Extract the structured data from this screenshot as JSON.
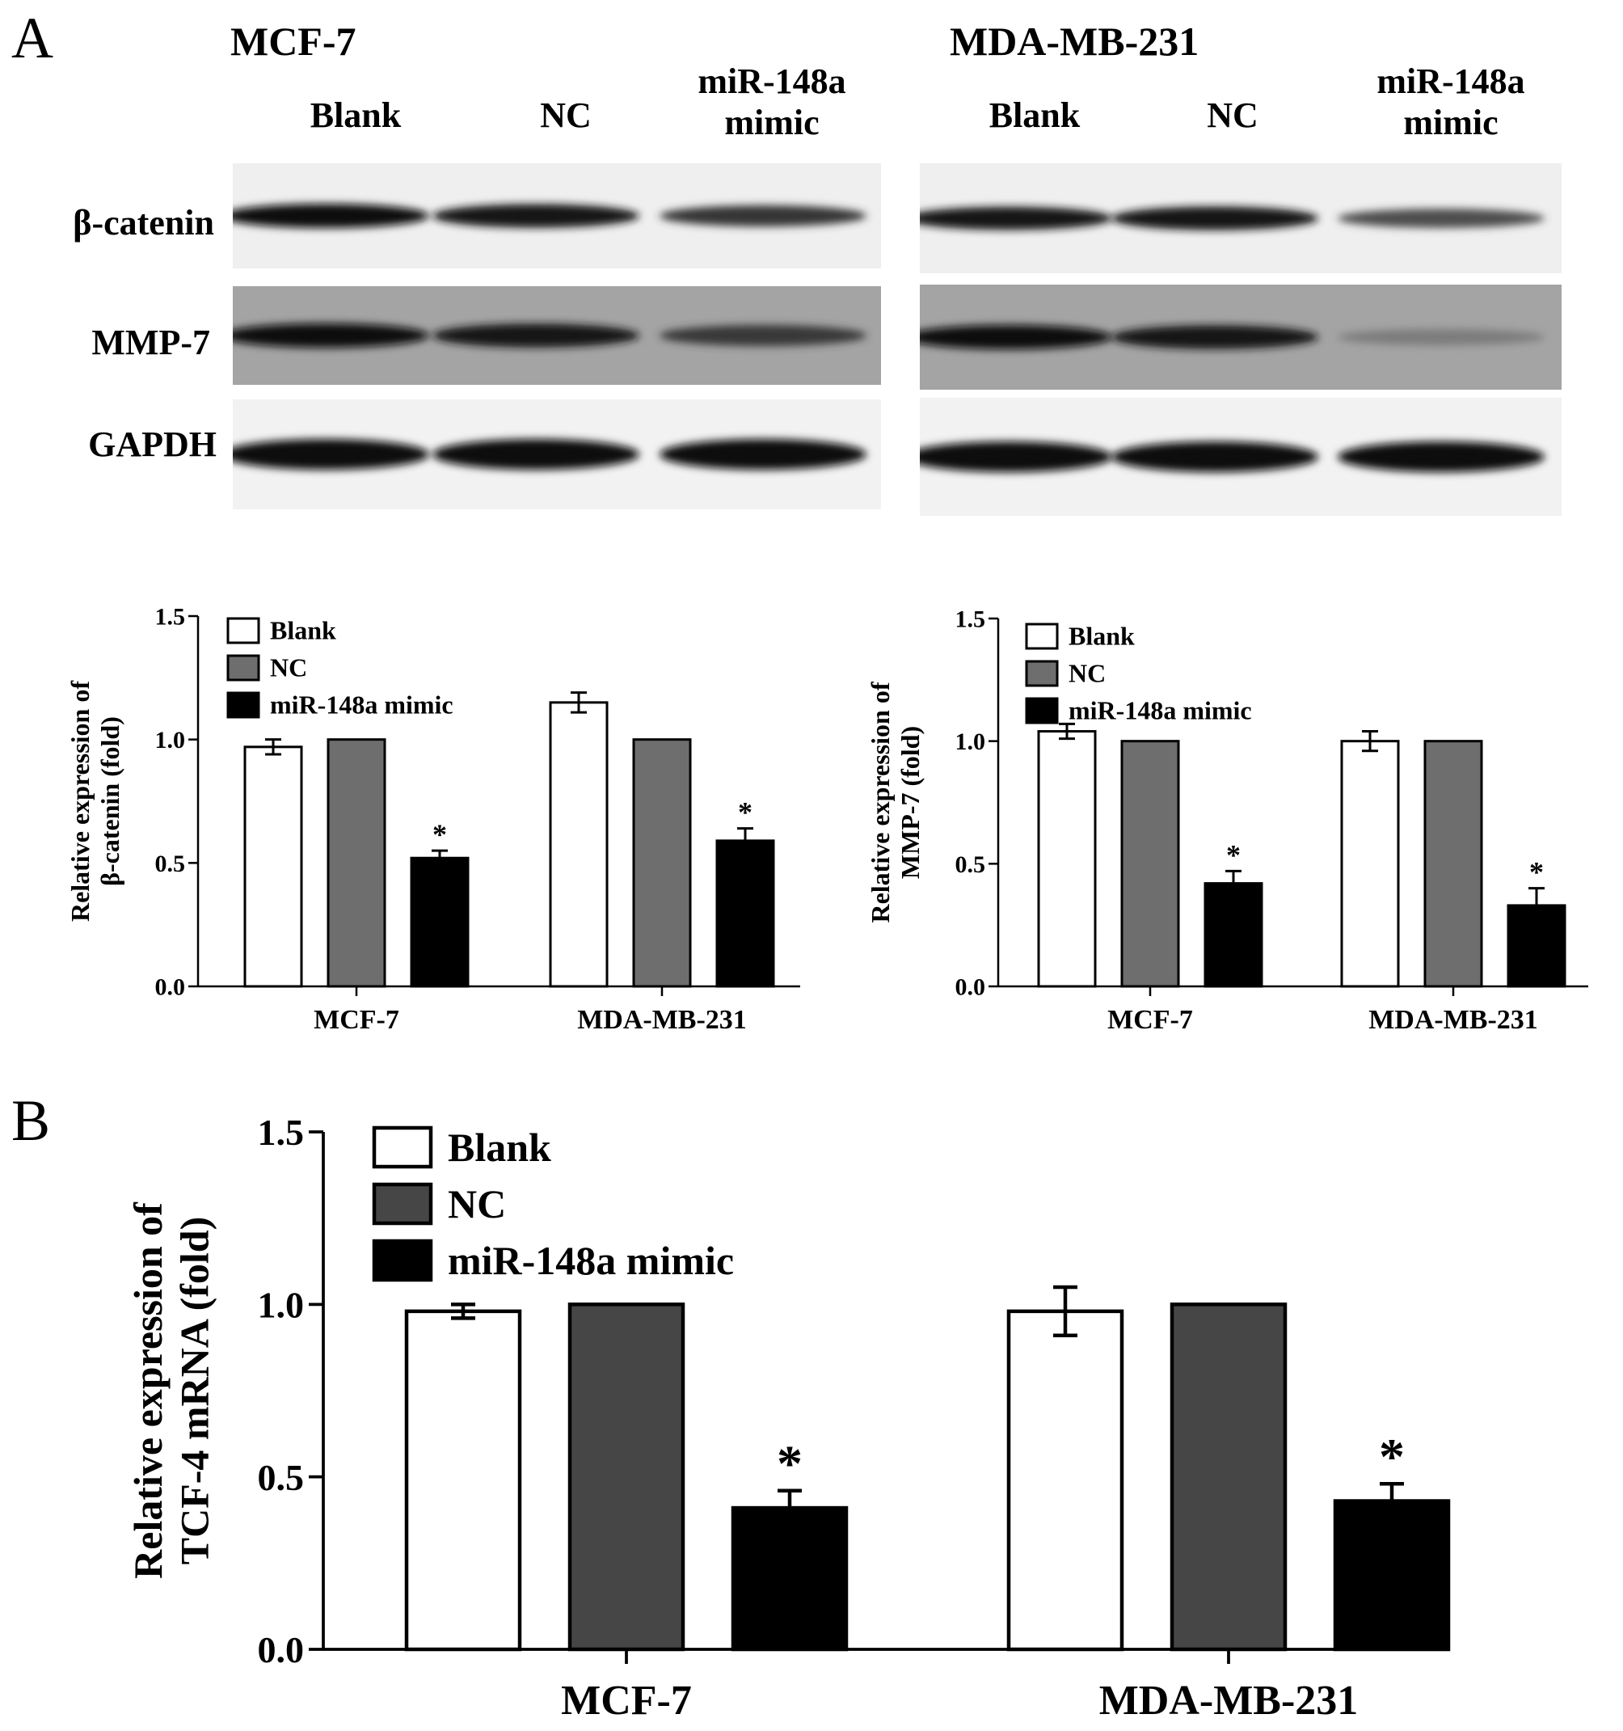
{
  "panels": {
    "a": "A",
    "b": "B"
  },
  "western_blot": {
    "cell_lines": [
      "MCF-7",
      "MDA-MB-231"
    ],
    "lanes": [
      {
        "line1": "Blank",
        "line2": ""
      },
      {
        "line1": "NC",
        "line2": ""
      },
      {
        "line1": "miR-148a",
        "line2": "mimic"
      }
    ],
    "proteins": [
      "β-catenin",
      "MMP-7",
      "GAPDH"
    ],
    "band_intensity": {
      "MCF-7": {
        "β-catenin": [
          1.0,
          0.95,
          0.72
        ],
        "MMP-7": [
          1.0,
          0.95,
          0.7
        ],
        "GAPDH": [
          1.0,
          1.0,
          1.0
        ]
      },
      "MDA-MB-231": {
        "β-catenin": [
          0.9,
          0.95,
          0.55
        ],
        "MMP-7": [
          1.0,
          0.95,
          0.25
        ],
        "GAPDH": [
          1.0,
          1.0,
          1.0
        ]
      }
    }
  },
  "colors": {
    "blank": "#ffffff",
    "nc": "#6e6e6e",
    "nc_b": "#464646",
    "mimic": "#000000"
  },
  "chart_data": [
    {
      "type": "bar",
      "title": "",
      "xlabel": "",
      "ylabel": "Relative expression of β-catenin (fold)",
      "categories": [
        "MCF-7",
        "MDA-MB-231"
      ],
      "series": [
        {
          "name": "Blank",
          "values": [
            0.97,
            1.15
          ],
          "errors": [
            0.03,
            0.04
          ]
        },
        {
          "name": "NC",
          "values": [
            1.0,
            1.0
          ],
          "errors": [
            0,
            0
          ]
        },
        {
          "name": "miR-148a mimic",
          "values": [
            0.52,
            0.59
          ],
          "errors": [
            0.03,
            0.05
          ]
        }
      ],
      "significance": [
        "*",
        "*"
      ],
      "ylim": [
        0,
        1.5
      ],
      "yticks": [
        "0.0",
        "0.5",
        "1.0",
        "1.5"
      ],
      "legend": "top-left",
      "grid": false
    },
    {
      "type": "bar",
      "title": "",
      "xlabel": "",
      "ylabel": "Relative expression of MMP-7 (fold)",
      "categories": [
        "MCF-7",
        "MDA-MB-231"
      ],
      "series": [
        {
          "name": "Blank",
          "values": [
            1.04,
            1.0
          ],
          "errors": [
            0.03,
            0.04
          ]
        },
        {
          "name": "NC",
          "values": [
            1.0,
            1.0
          ],
          "errors": [
            0,
            0
          ]
        },
        {
          "name": "miR-148a mimic",
          "values": [
            0.42,
            0.33
          ],
          "errors": [
            0.05,
            0.07
          ]
        }
      ],
      "significance": [
        "*",
        "*"
      ],
      "ylim": [
        0,
        1.5
      ],
      "yticks": [
        "0.0",
        "0.5",
        "1.0",
        "1.5"
      ],
      "legend": "top-left",
      "grid": false
    },
    {
      "type": "bar",
      "title": "",
      "xlabel": "",
      "ylabel": "Relative expression of TCF-4 mRNA (fold)",
      "categories": [
        "MCF-7",
        "MDA-MB-231"
      ],
      "series": [
        {
          "name": "Blank",
          "values": [
            0.98,
            0.98
          ],
          "errors": [
            0.02,
            0.07
          ]
        },
        {
          "name": "NC",
          "values": [
            1.0,
            1.0
          ],
          "errors": [
            0,
            0
          ]
        },
        {
          "name": "miR-148a mimic",
          "values": [
            0.41,
            0.43
          ],
          "errors": [
            0.05,
            0.05
          ]
        }
      ],
      "significance": [
        "*",
        "*"
      ],
      "ylim": [
        0,
        1.5
      ],
      "yticks": [
        "0.0",
        "0.5",
        "1.0",
        "1.5"
      ],
      "legend": "top-left",
      "grid": false
    }
  ]
}
